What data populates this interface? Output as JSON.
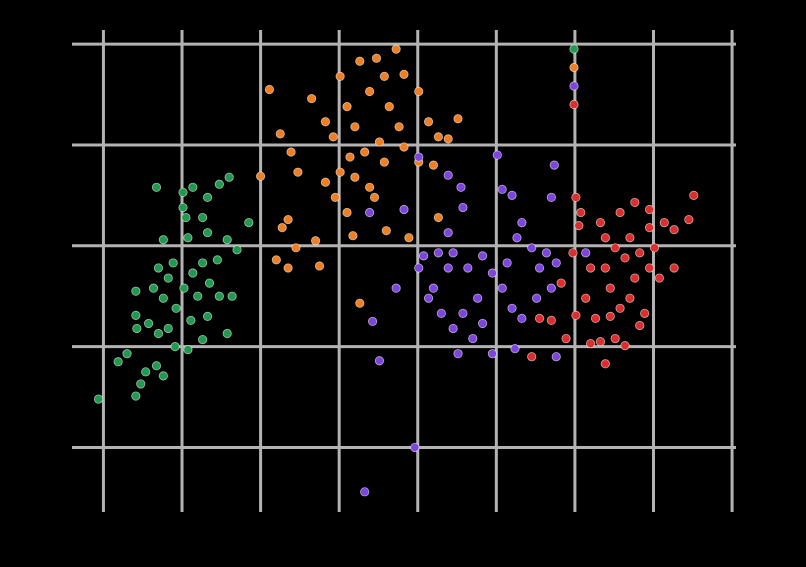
{
  "chart_data": {
    "type": "scatter",
    "grid": true,
    "xlim": [
      -32,
      644
    ],
    "ylim": [
      -64,
      414
    ],
    "xticks": [
      0,
      80,
      160,
      240,
      320,
      400,
      480,
      560,
      640
    ],
    "yticks": [
      0,
      100,
      200,
      300,
      400
    ],
    "legend": "upper right",
    "series": [
      {
        "color": "#1f9a4f",
        "x": [
          -5,
          33,
          38,
          43,
          15,
          24,
          61,
          54,
          34,
          33,
          33,
          46,
          56,
          66,
          73,
          86,
          101,
          126,
          106,
          89,
          74,
          61,
          51,
          66,
          82,
          96,
          118,
          131,
          108,
          91,
          71,
          56,
          101,
          116,
          136,
          126,
          106,
          86,
          61,
          84,
          101,
          106,
          81,
          54,
          91,
          118,
          128,
          148,
          81
        ],
        "values": [
          48,
          51,
          63,
          75,
          85,
          93,
          71,
          81,
          118,
          131,
          155,
          123,
          113,
          118,
          100,
          97,
          107,
          113,
          130,
          126,
          138,
          148,
          158,
          168,
          158,
          150,
          150,
          150,
          163,
          173,
          183,
          178,
          183,
          186,
          196,
          206,
          213,
          208,
          206,
          228,
          228,
          248,
          253,
          258,
          258,
          261,
          268,
          223,
          238
        ]
      },
      {
        "color": "#f07f23",
        "x": [
          169,
          160,
          180,
          191,
          198,
          188,
          182,
          176,
          188,
          196,
          216,
          220,
          212,
          226,
          234,
          241,
          248,
          256,
          261,
          271,
          278,
          286,
          298,
          306,
          291,
          301,
          281,
          266,
          251,
          241,
          256,
          271,
          286,
          306,
          321,
          331,
          341,
          351,
          361,
          321,
          336,
          248,
          254,
          288,
          276,
          311,
          341,
          261,
          236,
          226
        ],
        "values": [
          355,
          269,
          311,
          293,
          273,
          226,
          218,
          186,
          178,
          198,
          205,
          180,
          346,
          323,
          308,
          368,
          338,
          318,
          383,
          353,
          386,
          368,
          395,
          370,
          338,
          318,
          303,
          293,
          288,
          273,
          268,
          258,
          283,
          298,
          353,
          323,
          308,
          306,
          326,
          283,
          280,
          233,
          210,
          215,
          248,
          208,
          228,
          143,
          248,
          263
        ]
      },
      {
        "color": "#7e44e0",
        "x": [
          266,
          317,
          281,
          274,
          298,
          271,
          306,
          321,
          351,
          364,
          401,
          406,
          416,
          459,
          456,
          366,
          351,
          326,
          321,
          336,
          331,
          344,
          356,
          361,
          376,
          386,
          381,
          371,
          356,
          386,
          396,
          406,
          411,
          421,
          426,
          436,
          444,
          451,
          461,
          456,
          441,
          419,
          396,
          366,
          351,
          341,
          416,
          426,
          491,
          461
        ],
        "values": [
          -44,
          0,
          86,
          125,
          158,
          233,
          236,
          288,
          270,
          258,
          290,
          256,
          250,
          280,
          248,
          238,
          213,
          190,
          178,
          158,
          148,
          133,
          118,
          93,
          108,
          123,
          148,
          178,
          193,
          190,
          173,
          158,
          183,
          208,
          223,
          198,
          178,
          193,
          183,
          158,
          148,
          98,
          93,
          133,
          178,
          193,
          138,
          128,
          193,
          90
        ]
      },
      {
        "color": "#dd2e2e",
        "x": [
          436,
          444,
          456,
          466,
          471,
          481,
          478,
          484,
          496,
          491,
          501,
          506,
          496,
          511,
          521,
          531,
          526,
          536,
          551,
          546,
          516,
          511,
          521,
          536,
          531,
          546,
          556,
          566,
          561,
          556,
          571,
          581,
          581,
          596,
          601,
          556,
          541,
          526,
          506,
          486,
          481,
          511,
          541,
          516
        ],
        "values": [
          90,
          128,
          126,
          163,
          108,
          131,
          193,
          220,
          178,
          148,
          128,
          105,
          103,
          83,
          108,
          101,
          138,
          148,
          133,
          121,
          158,
          178,
          198,
          208,
          188,
          193,
          178,
          168,
          198,
          218,
          223,
          216,
          178,
          226,
          250,
          236,
          243,
          233,
          223,
          233,
          248,
          208,
          168,
          130
        ]
      }
    ]
  }
}
